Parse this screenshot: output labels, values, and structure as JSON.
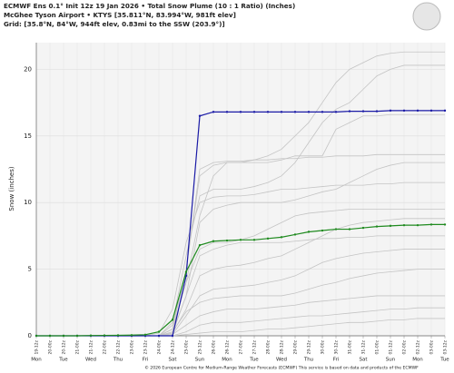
{
  "chart_data": {
    "type": "line",
    "title": "ECMWF Ens 0.1° Init 12z 19 Jan 2026 • Total Snow Plume (10 : 1 Ratio) (Inches)",
    "subtitle": "McGhee Tyson Airport • KTYS [35.811°N, 83.994°W, 981ft elev]",
    "grid_info": "Grid: [35.8°N, 84°W, 944ft elev, 0.83mi to the SSW (203.9°)]",
    "footer": "© 2026 European Centre for Medium-Range Weather Forecasts (ECMWF) This service is based on data and products of the ECMWF",
    "y_label": "Snow (inches)",
    "categories": [
      "19-12z",
      "20-00z",
      "20-12z",
      "21-00z",
      "21-12z",
      "22-00z",
      "22-12z",
      "23-00z",
      "23-12z",
      "24-00z",
      "24-12z",
      "25-00z",
      "25-12z",
      "26-00z",
      "26-12z",
      "27-00z",
      "27-12z",
      "28-00z",
      "28-12z",
      "29-00z",
      "29-12z",
      "30-00z",
      "30-12z",
      "31-00z",
      "31-12z",
      "01-00z",
      "01-12z",
      "02-00z",
      "02-12z",
      "03-00z",
      "03-12z"
    ],
    "days": [
      "Mon",
      "Tue",
      "Wed",
      "Thu",
      "Fri",
      "Sat",
      "Sun",
      "Mon",
      "Tue",
      "Wed",
      "Thu",
      "Fri",
      "Sat",
      "Sun",
      "Mon",
      "Tue"
    ],
    "ylim": [
      0,
      22
    ],
    "yticks": [
      0,
      5,
      10,
      15,
      20
    ],
    "grid": true,
    "member_color": "#c4c4c4",
    "members": [
      {
        "values": [
          0,
          0,
          0,
          0,
          0,
          0,
          0,
          0,
          0,
          0,
          0.5,
          4,
          9,
          12,
          13,
          13,
          13.2,
          13.5,
          14,
          15,
          16,
          17.5,
          19,
          20,
          20.5,
          21,
          21.2,
          21.3,
          21.3,
          21.3,
          21.3
        ]
      },
      {
        "values": [
          0,
          0,
          0,
          0,
          0,
          0,
          0,
          0,
          0,
          0,
          1,
          6,
          10.5,
          11,
          11,
          11,
          11.2,
          11.5,
          12,
          13,
          14.5,
          16,
          17,
          17.5,
          18.5,
          19.5,
          20,
          20.3,
          20.3,
          20.3,
          20.3
        ]
      },
      {
        "values": [
          0,
          0,
          0,
          0,
          0,
          0,
          0,
          0,
          0,
          0,
          0.8,
          5,
          12,
          12.8,
          13,
          13,
          13,
          13,
          13.2,
          13.5,
          13.5,
          13.5,
          15.5,
          16,
          16.5,
          16.5,
          16.6,
          16.6,
          16.6,
          16.6,
          16.6
        ]
      },
      {
        "values": [
          0,
          0,
          0,
          0,
          0,
          0,
          0,
          0,
          0,
          0.2,
          2,
          7,
          10,
          10.4,
          10.5,
          10.5,
          10.6,
          10.8,
          11,
          11,
          11.1,
          11.2,
          11.3,
          11.3,
          11.3,
          11.4,
          11.4,
          11.5,
          11.5,
          11.5,
          11.5
        ]
      },
      {
        "values": [
          0,
          0,
          0,
          0,
          0,
          0,
          0,
          0,
          0,
          0,
          0.3,
          3,
          8.5,
          9.5,
          9.8,
          10,
          10,
          10,
          10,
          10.2,
          10.5,
          10.8,
          11,
          11.5,
          12,
          12.5,
          12.8,
          13,
          13,
          13,
          13
        ]
      },
      {
        "values": [
          0,
          0,
          0,
          0,
          0,
          0,
          0,
          0,
          0,
          0,
          0.5,
          4,
          6.5,
          7,
          7,
          7.2,
          7.5,
          8,
          8.5,
          9,
          9.2,
          9.3,
          9.4,
          9.5,
          9.5,
          9.5,
          9.5,
          9.5,
          9.5,
          9.5,
          9.5
        ]
      },
      {
        "values": [
          0,
          0,
          0,
          0,
          0,
          0,
          0,
          0,
          0,
          0,
          0.2,
          2,
          4.5,
          5,
          5.2,
          5.3,
          5.5,
          5.8,
          6,
          6.5,
          7,
          7.5,
          8,
          8.3,
          8.5,
          8.6,
          8.7,
          8.8,
          8.8,
          8.8,
          8.8
        ]
      },
      {
        "values": [
          0,
          0,
          0,
          0,
          0,
          0,
          0,
          0,
          0,
          0,
          0.1,
          1.5,
          3,
          3.5,
          3.6,
          3.7,
          3.8,
          4,
          4.2,
          4.5,
          5,
          5.5,
          5.8,
          6,
          6.2,
          6.3,
          6.4,
          6.5,
          6.5,
          6.5,
          6.5
        ]
      },
      {
        "values": [
          0,
          0,
          0,
          0,
          0,
          0,
          0,
          0,
          0,
          0,
          0.3,
          1.8,
          2.5,
          2.8,
          2.9,
          3,
          3,
          3,
          3,
          3.2,
          3.5,
          3.8,
          4,
          4.3,
          4.5,
          4.7,
          4.8,
          4.9,
          5,
          5,
          5
        ]
      },
      {
        "values": [
          0,
          0,
          0,
          0,
          0,
          0,
          0,
          0,
          0,
          0,
          0.1,
          0.8,
          1.5,
          1.8,
          2,
          2,
          2,
          2.1,
          2.2,
          2.3,
          2.5,
          2.6,
          2.7,
          2.8,
          2.9,
          3,
          3,
          3,
          3,
          3,
          3
        ]
      },
      {
        "values": [
          0,
          0,
          0,
          0,
          0,
          0,
          0,
          0,
          0,
          0,
          0,
          0.3,
          0.8,
          1,
          1,
          1,
          1.1,
          1.2,
          1.3,
          1.4,
          1.5,
          1.5,
          1.6,
          1.7,
          1.8,
          1.9,
          2,
          2,
          2.1,
          2.1,
          2.1
        ]
      },
      {
        "values": [
          0,
          0,
          0,
          0,
          0,
          0,
          0,
          0,
          0,
          0,
          0,
          0.1,
          0.2,
          0.3,
          0.3,
          0.3,
          0.4,
          0.5,
          0.5,
          0.6,
          0.7,
          0.8,
          0.9,
          1,
          1,
          1.1,
          1.2,
          1.2,
          1.3,
          1.3,
          1.3
        ]
      },
      {
        "values": [
          0,
          0,
          0,
          0,
          0,
          0,
          0,
          0,
          0,
          0,
          0.5,
          5,
          12.5,
          13,
          13.1,
          13.1,
          13.2,
          13.2,
          13.3,
          13.3,
          13.4,
          13.4,
          13.5,
          13.5,
          13.5,
          13.6,
          13.6,
          13.6,
          13.6,
          13.6,
          13.6
        ]
      },
      {
        "values": [
          0,
          0,
          0,
          0,
          0,
          0,
          0,
          0,
          0,
          0,
          0.2,
          3,
          6,
          6.5,
          6.8,
          7,
          7,
          7,
          7,
          7.1,
          7.2,
          7.3,
          7.3,
          7.4,
          7.4,
          7.5,
          7.5,
          7.5,
          7.5,
          7.5,
          7.5
        ]
      }
    ],
    "series": [
      {
        "color": "#1a1aa6",
        "values": [
          0,
          0,
          0,
          0,
          0,
          0,
          0,
          0,
          0,
          0,
          0,
          4.5,
          16.5,
          16.8,
          16.8,
          16.8,
          16.8,
          16.8,
          16.8,
          16.8,
          16.8,
          16.8,
          16.8,
          16.85,
          16.85,
          16.85,
          16.9,
          16.9,
          16.9,
          16.9,
          16.9
        ]
      },
      {
        "color": "#1f8a1f",
        "values": [
          0,
          0,
          0,
          0,
          0.02,
          0.03,
          0.04,
          0.05,
          0.08,
          0.3,
          1.2,
          4.8,
          6.8,
          7.1,
          7.15,
          7.2,
          7.2,
          7.3,
          7.4,
          7.6,
          7.8,
          7.9,
          8,
          8,
          8.1,
          8.2,
          8.25,
          8.3,
          8.3,
          8.35,
          8.35
        ]
      }
    ]
  }
}
